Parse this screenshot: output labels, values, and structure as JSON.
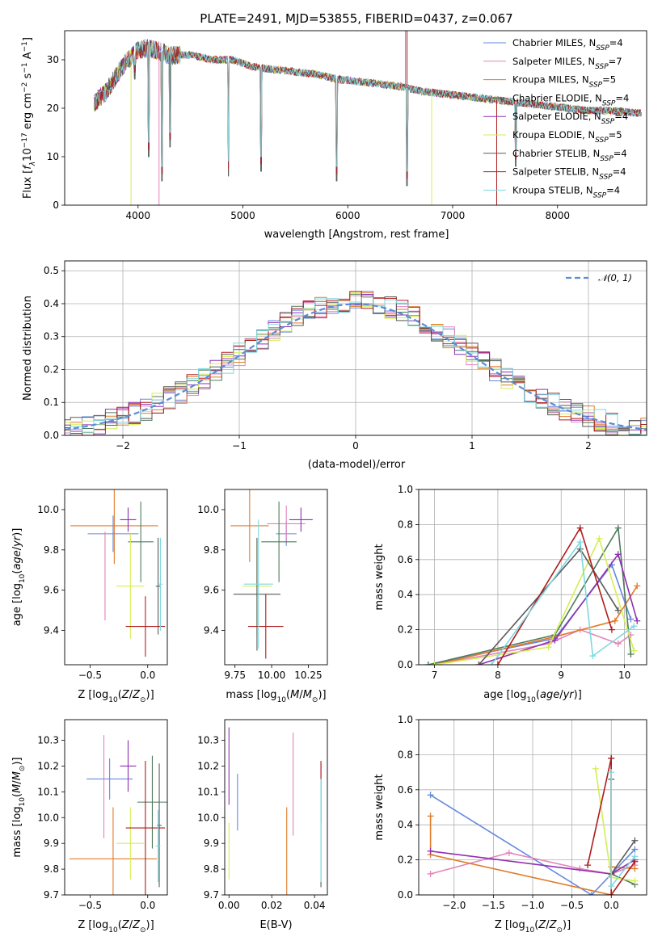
{
  "title": "PLATE=2491, MJD=53855, FIBERID=0437, z=0.067",
  "colors": {
    "Chabrier MILES": "#6688dd",
    "Salpeter MILES": "#e383b9",
    "Kroupa MILES": "#e07a28",
    "Chabrier ELODIE": "#4e7b5c",
    "Salpeter ELODIE": "#9030b0",
    "Kroupa ELODIE": "#d4ee55",
    "Chabrier STELIB": "#5a5a5a",
    "Salpeter STELIB": "#b01c1c",
    "Kroupa STELIB": "#7ed8e0"
  },
  "legend_spec": [
    {
      "name": "Chabrier MILES",
      "pre": "Chabrier MILES, N",
      "sub": "SSP",
      "post": "=4"
    },
    {
      "name": "Salpeter MILES",
      "pre": "Salpeter MILES, N",
      "sub": "SSP",
      "post": "=7"
    },
    {
      "name": "Kroupa MILES",
      "pre": "Kroupa MILES, N",
      "sub": "SSP",
      "post": "=5"
    },
    {
      "name": "Chabrier ELODIE",
      "pre": "Chabrier ELODIE, N",
      "sub": "SSP",
      "post": "=4"
    },
    {
      "name": "Salpeter ELODIE",
      "pre": "Salpeter ELODIE, N",
      "sub": "SSP",
      "post": "=4"
    },
    {
      "name": "Kroupa ELODIE",
      "pre": "Kroupa ELODIE, N",
      "sub": "SSP",
      "post": "=5"
    },
    {
      "name": "Chabrier STELIB",
      "pre": "Chabrier STELIB, N",
      "sub": "SSP",
      "post": "=4"
    },
    {
      "name": "Salpeter STELIB",
      "pre": "Salpeter STELIB, N",
      "sub": "SSP",
      "post": "=4"
    },
    {
      "name": "Kroupa STELIB",
      "pre": "Kroupa STELIB, N",
      "sub": "SSP",
      "post": "=4"
    }
  ],
  "chart_data": [
    {
      "id": "spectrum",
      "type": "line",
      "xlabel": "wavelength [Angstrom, rest frame]",
      "ylabel": "Flux [f_λ 10^-17 erg cm^-2 s^-1 A^-1]",
      "xlim": [
        3300,
        8850
      ],
      "ylim": [
        0,
        36
      ],
      "xticks": [
        4000,
        5000,
        6000,
        7000,
        8000
      ],
      "yticks": [
        0,
        10,
        20,
        30
      ],
      "legend": "top-right",
      "continuum": [
        [
          3580,
          21
        ],
        [
          3700,
          23.5
        ],
        [
          3800,
          27
        ],
        [
          3900,
          30
        ],
        [
          4000,
          32
        ],
        [
          4100,
          32.5
        ],
        [
          4300,
          31
        ],
        [
          4500,
          31
        ],
        [
          4700,
          30
        ],
        [
          4900,
          30
        ],
        [
          5100,
          28.5
        ],
        [
          5300,
          28
        ],
        [
          5500,
          27.5
        ],
        [
          5700,
          27
        ],
        [
          5900,
          26
        ],
        [
          6100,
          25.5
        ],
        [
          6300,
          25
        ],
        [
          6500,
          24.5
        ],
        [
          6700,
          23.5
        ],
        [
          6900,
          23
        ],
        [
          7100,
          22.5
        ],
        [
          7300,
          22
        ],
        [
          7500,
          21.5
        ],
        [
          7700,
          21
        ],
        [
          7900,
          20.5
        ],
        [
          8100,
          20
        ],
        [
          8300,
          19.5
        ],
        [
          8500,
          19.5
        ],
        [
          8800,
          19
        ]
      ],
      "absorption": [
        [
          3933,
          30
        ],
        [
          3968,
          26
        ],
        [
          4101,
          10
        ],
        [
          4226,
          5
        ],
        [
          4304,
          12
        ],
        [
          4861,
          6
        ],
        [
          5175,
          7
        ],
        [
          5893,
          5
        ],
        [
          6563,
          4
        ],
        [
          7600,
          8
        ]
      ],
      "spikes": [
        [
          3933,
          0
        ],
        [
          4200,
          0
        ],
        [
          6550,
          36
        ],
        [
          6565,
          36
        ],
        [
          6800,
          0
        ],
        [
          7420,
          0
        ]
      ]
    },
    {
      "id": "residuals",
      "type": "histogram",
      "xlabel": "(data-model)/error",
      "ylabel": "Normed distribution",
      "xlim": [
        -2.5,
        2.5
      ],
      "ylim": [
        0,
        0.53
      ],
      "xticks": [
        -2,
        -1,
        0,
        1,
        2
      ],
      "yticks": [
        0.0,
        0.1,
        0.2,
        0.3,
        0.4,
        0.5
      ],
      "grid": true,
      "reference": {
        "label": "N(0,1)",
        "mean": 0,
        "sigma": 1
      },
      "bin_width": 0.1,
      "legend": "top-right"
    },
    {
      "id": "age_vs_Z",
      "type": "errorbar",
      "xlabel": "Z [log10(Z/Z⊙)]",
      "ylabel": "age [log10(age/yr)]",
      "xlim": [
        -0.72,
        0.17
      ],
      "ylim": [
        9.23,
        10.1
      ],
      "xticks": [
        -0.5,
        0.0
      ],
      "yticks": [
        9.4,
        9.6,
        9.8,
        10.0
      ],
      "points": [
        {
          "s": "Chabrier MILES",
          "x": -0.3,
          "xe": 0.22,
          "y": 9.88,
          "ye": 0.09
        },
        {
          "s": "Salpeter MILES",
          "x": -0.37,
          "xe": 0.0,
          "y": 9.67,
          "ye": 0.22
        },
        {
          "s": "Kroupa MILES",
          "x": -0.29,
          "xe": 0.38,
          "y": 9.92,
          "ye": 0.19
        },
        {
          "s": "Chabrier ELODIE",
          "x": -0.06,
          "xe": 0.11,
          "y": 9.84,
          "ye": 0.2
        },
        {
          "s": "Salpeter ELODIE",
          "x": -0.17,
          "xe": 0.07,
          "y": 9.95,
          "ye": 0.06
        },
        {
          "s": "Kroupa ELODIE",
          "x": -0.15,
          "xe": 0.12,
          "y": 9.62,
          "ye": 0.26
        },
        {
          "s": "Chabrier STELIB",
          "x": 0.09,
          "xe": 0.02,
          "y": 9.62,
          "ye": 0.24
        },
        {
          "s": "Salpeter STELIB",
          "x": -0.02,
          "xe": 0.17,
          "y": 9.42,
          "ye": 0.15
        },
        {
          "s": "Kroupa STELIB",
          "x": 0.11,
          "xe": 0.02,
          "y": 9.63,
          "ye": 0.23
        }
      ]
    },
    {
      "id": "age_vs_mass",
      "type": "errorbar",
      "xlabel": "mass [log10(M/M⊙)]",
      "ylabel": "",
      "xlim": [
        9.68,
        10.38
      ],
      "ylim": [
        9.23,
        10.1
      ],
      "xticks": [
        9.75,
        10.0,
        10.25
      ],
      "yticks": [
        9.4,
        9.6,
        9.8,
        10.0
      ],
      "points": [
        {
          "s": "Chabrier MILES",
          "x": 10.1,
          "xe": 0.07,
          "y": 9.88,
          "ye": 0.06
        },
        {
          "s": "Salpeter MILES",
          "x": 10.1,
          "xe": 0.13,
          "y": 9.93,
          "ye": 0.09
        },
        {
          "s": "Kroupa MILES",
          "x": 9.85,
          "xe": 0.13,
          "y": 9.92,
          "ye": 0.18
        },
        {
          "s": "Chabrier ELODIE",
          "x": 10.05,
          "xe": 0.12,
          "y": 9.84,
          "ye": 0.2
        },
        {
          "s": "Salpeter ELODIE",
          "x": 10.2,
          "xe": 0.08,
          "y": 9.95,
          "ye": 0.06
        },
        {
          "s": "Kroupa ELODIE",
          "x": 9.9,
          "xe": 0.1,
          "y": 9.62,
          "ye": 0.24
        },
        {
          "s": "Chabrier STELIB",
          "x": 9.9,
          "xe": 0.16,
          "y": 9.58,
          "ye": 0.28
        },
        {
          "s": "Salpeter STELIB",
          "x": 9.96,
          "xe": 0.12,
          "y": 9.42,
          "ye": 0.16
        },
        {
          "s": "Kroupa STELIB",
          "x": 9.91,
          "xe": 0.1,
          "y": 9.63,
          "ye": 0.32
        }
      ]
    },
    {
      "id": "weights_vs_age",
      "type": "line",
      "xlabel": "age [log10(age/yr)]",
      "ylabel": "mass weight",
      "xlim": [
        6.75,
        10.35
      ],
      "ylim": [
        0,
        1.0
      ],
      "xticks": [
        7,
        8,
        9,
        10
      ],
      "yticks": [
        0.0,
        0.2,
        0.4,
        0.6,
        0.8,
        1.0
      ],
      "grid": true,
      "series": [
        {
          "s": "Chabrier MILES",
          "pts": [
            [
              6.9,
              0.0
            ],
            [
              8.9,
              0.15
            ],
            [
              9.8,
              0.57
            ],
            [
              10.1,
              0.26
            ]
          ]
        },
        {
          "s": "Salpeter MILES",
          "pts": [
            [
              7.0,
              0.0
            ],
            [
              8.8,
              0.12
            ],
            [
              9.3,
              0.2
            ],
            [
              9.9,
              0.12
            ],
            [
              10.1,
              0.17
            ]
          ]
        },
        {
          "s": "Kroupa MILES",
          "pts": [
            [
              7.0,
              0.0
            ],
            [
              8.9,
              0.16
            ],
            [
              9.85,
              0.25
            ],
            [
              10.2,
              0.45
            ]
          ]
        },
        {
          "s": "Chabrier ELODIE",
          "pts": [
            [
              6.9,
              0.0
            ],
            [
              8.9,
              0.17
            ],
            [
              9.9,
              0.78
            ],
            [
              10.1,
              0.06
            ]
          ]
        },
        {
          "s": "Salpeter ELODIE",
          "pts": [
            [
              7.7,
              0.0
            ],
            [
              8.9,
              0.14
            ],
            [
              9.9,
              0.63
            ],
            [
              10.2,
              0.25
            ]
          ]
        },
        {
          "s": "Kroupa ELODIE",
          "pts": [
            [
              7.0,
              0.0
            ],
            [
              8.8,
              0.1
            ],
            [
              9.6,
              0.72
            ],
            [
              10.15,
              0.08
            ]
          ]
        },
        {
          "s": "Chabrier STELIB",
          "pts": [
            [
              7.7,
              0.0
            ],
            [
              9.3,
              0.66
            ],
            [
              9.9,
              0.31
            ]
          ]
        },
        {
          "s": "Salpeter STELIB",
          "pts": [
            [
              8.0,
              0.0
            ],
            [
              9.3,
              0.78
            ],
            [
              9.8,
              0.2
            ]
          ]
        },
        {
          "s": "Kroupa STELIB",
          "pts": [
            [
              7.9,
              0.0
            ],
            [
              9.3,
              0.7
            ],
            [
              9.5,
              0.05
            ],
            [
              10.15,
              0.22
            ]
          ]
        }
      ]
    },
    {
      "id": "mass_vs_Z",
      "type": "errorbar",
      "xlabel": "Z [log10(Z/Z⊙)]",
      "ylabel": "mass [log10(M/M⊙)]",
      "xlim": [
        -0.72,
        0.17
      ],
      "ylim": [
        9.7,
        10.38
      ],
      "xticks": [
        -0.5,
        0.0
      ],
      "yticks": [
        9.7,
        9.8,
        9.9,
        10.0,
        10.1,
        10.2,
        10.3
      ],
      "points": [
        {
          "s": "Chabrier MILES",
          "x": -0.33,
          "xe": 0.2,
          "y": 10.15,
          "ye": 0.08
        },
        {
          "s": "Salpeter MILES",
          "x": -0.38,
          "xe": 0.0,
          "y": 10.12,
          "ye": 0.2
        },
        {
          "s": "Kroupa MILES",
          "x": -0.3,
          "xe": 0.38,
          "y": 9.84,
          "ye": 0.2
        },
        {
          "s": "Chabrier ELODIE",
          "x": 0.04,
          "xe": 0.13,
          "y": 10.06,
          "ye": 0.18
        },
        {
          "s": "Salpeter ELODIE",
          "x": -0.17,
          "xe": 0.07,
          "y": 10.2,
          "ye": 0.1
        },
        {
          "s": "Kroupa ELODIE",
          "x": -0.15,
          "xe": 0.12,
          "y": 9.9,
          "ye": 0.14
        },
        {
          "s": "Chabrier STELIB",
          "x": 0.1,
          "xe": 0.02,
          "y": 9.97,
          "ye": 0.24
        },
        {
          "s": "Salpeter STELIB",
          "x": -0.02,
          "xe": 0.17,
          "y": 9.96,
          "ye": 0.26
        },
        {
          "s": "Kroupa STELIB",
          "x": 0.09,
          "xe": 0.02,
          "y": 9.89,
          "ye": 0.14
        }
      ]
    },
    {
      "id": "mass_vs_ebv",
      "type": "errorbar",
      "xlabel": "E(B-V)",
      "ylabel": "",
      "xlim": [
        -0.002,
        0.046
      ],
      "ylim": [
        9.7,
        10.38
      ],
      "xticks": [
        0.0,
        0.02,
        0.04
      ],
      "yticks": [
        9.7,
        9.8,
        9.9,
        10.0,
        10.1,
        10.2,
        10.3
      ],
      "points": [
        {
          "s": "Chabrier MILES",
          "x": 0.004,
          "xe": 0.0,
          "y": 10.06,
          "ye": 0.11
        },
        {
          "s": "Salpeter MILES",
          "x": 0.03,
          "xe": 0.0,
          "y": 10.13,
          "ye": 0.2
        },
        {
          "s": "Kroupa MILES",
          "x": 0.027,
          "xe": 0.0,
          "y": 9.87,
          "ye": 0.17
        },
        {
          "s": "Salpeter ELODIE",
          "x": 0.0,
          "xe": 0.0,
          "y": 10.2,
          "ye": 0.15
        },
        {
          "s": "Kroupa ELODIE",
          "x": 0.0,
          "xe": 0.0,
          "y": 9.87,
          "ye": 0.11
        },
        {
          "s": "Chabrier STELIB",
          "x": 0.043,
          "xe": 0.0,
          "y": 9.97,
          "ye": 0.24
        },
        {
          "s": "Salpeter STELIB",
          "x": 0.043,
          "xe": 0.0,
          "y": 10.1,
          "ye": 0.12
        },
        {
          "s": "Kroupa STELIB",
          "x": 0.043,
          "xe": 0.0,
          "y": 9.95,
          "ye": 0.2
        }
      ]
    },
    {
      "id": "weights_vs_Z",
      "type": "line",
      "xlabel": "Z [log10(Z/Z⊙)]",
      "ylabel": "mass weight",
      "xlim": [
        -2.45,
        0.45
      ],
      "ylim": [
        0,
        1.0
      ],
      "xticks": [
        -2.0,
        -1.5,
        -1.0,
        -0.5,
        0.0
      ],
      "yticks": [
        0.0,
        0.2,
        0.4,
        0.6,
        0.8,
        1.0
      ],
      "grid": true,
      "series": [
        {
          "s": "Chabrier MILES",
          "pts": [
            [
              -2.3,
              0.57
            ],
            [
              -0.25,
              0.0
            ],
            [
              0.3,
              0.26
            ]
          ]
        },
        {
          "s": "Salpeter MILES",
          "pts": [
            [
              -2.3,
              0.12
            ],
            [
              -1.3,
              0.24
            ],
            [
              -0.4,
              0.15
            ],
            [
              0.0,
              0.12
            ],
            [
              0.3,
              0.17
            ]
          ]
        },
        {
          "s": "Kroupa MILES",
          "pts": [
            [
              -2.3,
              0.45
            ],
            [
              -2.3,
              0.23
            ],
            [
              0.0,
              0.0
            ],
            [
              0.0,
              0.16
            ],
            [
              0.3,
              0.15
            ]
          ]
        },
        {
          "s": "Chabrier ELODIE",
          "pts": [
            [
              0.0,
              0.78
            ],
            [
              0.0,
              0.12
            ],
            [
              0.3,
              0.06
            ]
          ]
        },
        {
          "s": "Salpeter ELODIE",
          "pts": [
            [
              -2.3,
              0.25
            ],
            [
              0.0,
              0.12
            ],
            [
              0.3,
              0.2
            ]
          ]
        },
        {
          "s": "Kroupa ELODIE",
          "pts": [
            [
              -0.2,
              0.72
            ],
            [
              0.0,
              0.1
            ],
            [
              0.3,
              0.08
            ]
          ]
        },
        {
          "s": "Chabrier STELIB",
          "pts": [
            [
              0.0,
              0.66
            ],
            [
              0.0,
              0.12
            ],
            [
              0.3,
              0.31
            ]
          ]
        },
        {
          "s": "Salpeter STELIB",
          "pts": [
            [
              -0.3,
              0.17
            ],
            [
              0.0,
              0.78
            ],
            [
              0.0,
              0.0
            ],
            [
              0.3,
              0.19
            ]
          ]
        },
        {
          "s": "Kroupa STELIB",
          "pts": [
            [
              0.0,
              0.7
            ],
            [
              0.0,
              0.05
            ],
            [
              0.3,
              0.22
            ]
          ]
        }
      ]
    }
  ]
}
